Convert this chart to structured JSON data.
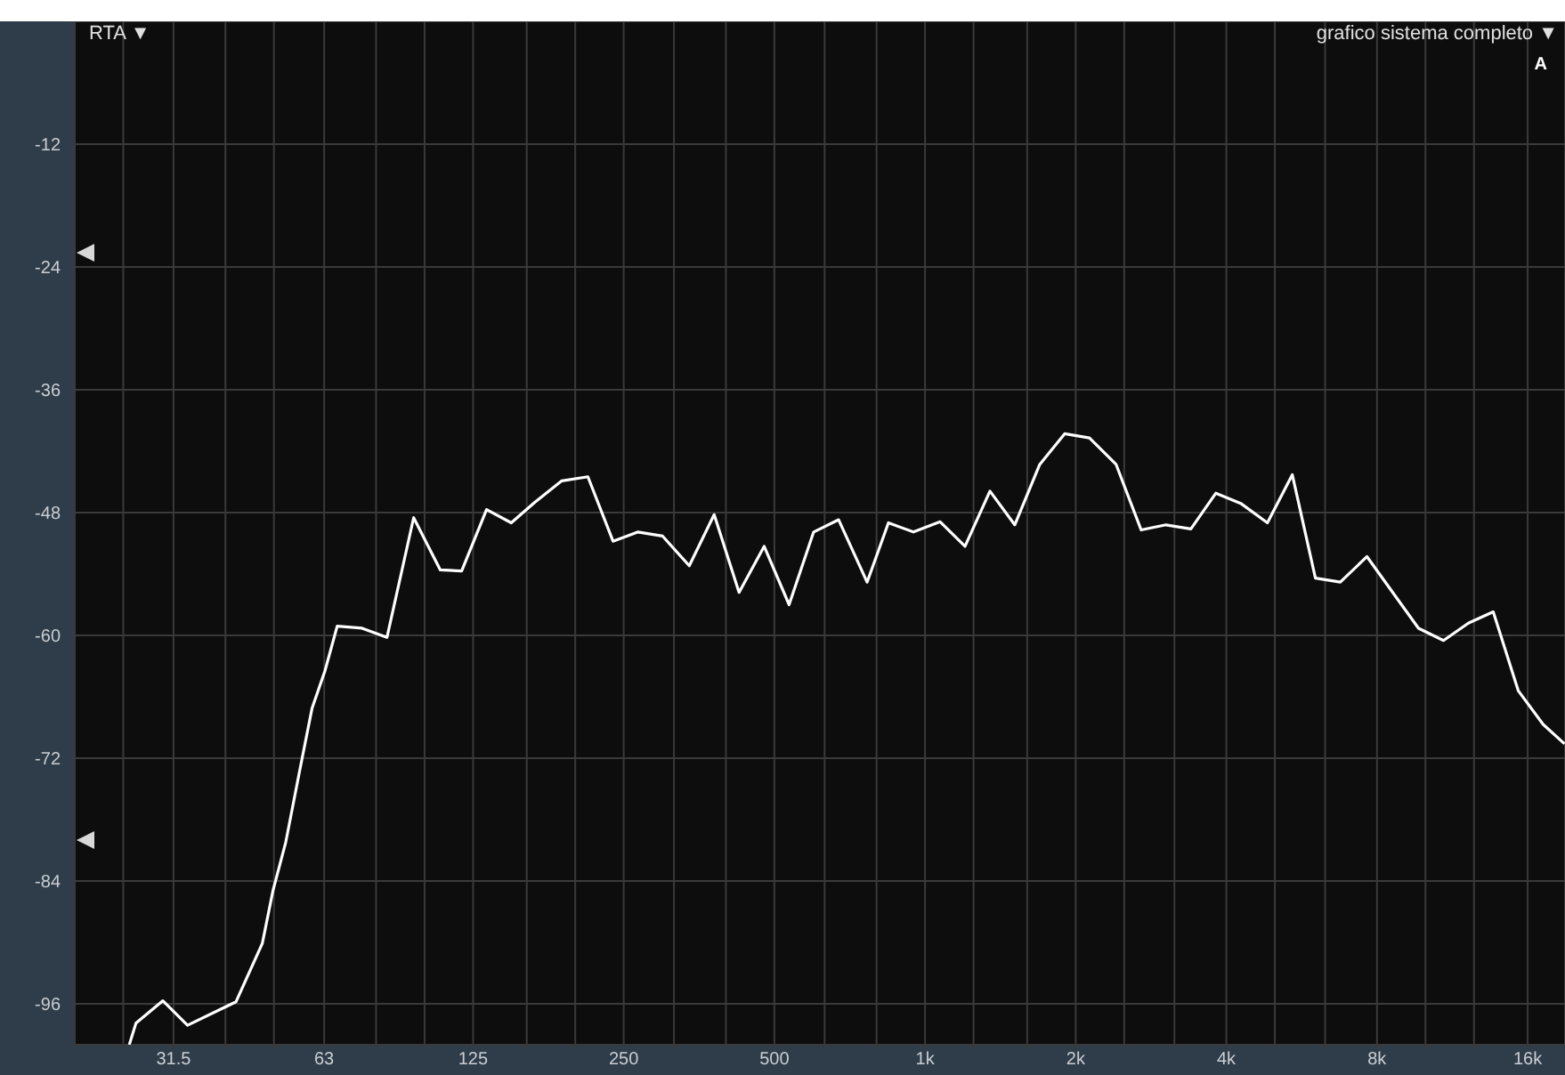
{
  "chart_data": {
    "type": "line",
    "title": "RTA ▼",
    "subtitle": "grafico sistema completo ▼",
    "annotations": [
      "A"
    ],
    "x": [
      25.7,
      26.5,
      30.0,
      33.6,
      42.0,
      47.4,
      49.8,
      52.8,
      56.3,
      59.6,
      63.2,
      66.9,
      75.0,
      84.1,
      95.1,
      107.5,
      118.6,
      133,
      149,
      166,
      188,
      212,
      238,
      267,
      299,
      338,
      379,
      425,
      477,
      535,
      599,
      672,
      766,
      845,
      948,
      1072,
      1202,
      1348,
      1511,
      1695,
      1901,
      2131,
      2409,
      2703,
      3030,
      3398,
      3812,
      4274,
      4832,
      5418,
      6026,
      6757,
      7639,
      9683,
      10864,
      12181,
      13658,
      15322,
      17180,
      18960
    ],
    "series": [
      {
        "color": "#ffffff",
        "values": [
          -100.0,
          -97.9,
          -95.7,
          -98.1,
          -95.8,
          -90.1,
          -84.9,
          -80.2,
          -73.2,
          -67.1,
          -63.5,
          -59.1,
          -59.3,
          -60.2,
          -48.5,
          -53.6,
          -53.7,
          -47.7,
          -49.0,
          -47.0,
          -44.9,
          -44.5,
          -50.8,
          -49.9,
          -50.3,
          -53.2,
          -48.2,
          -55.8,
          -51.3,
          -57.0,
          -49.9,
          -48.7,
          -54.8,
          -49.0,
          -49.9,
          -48.9,
          -51.3,
          -45.9,
          -49.2,
          -43.3,
          -40.3,
          -40.7,
          -43.3,
          -49.7,
          -49.2,
          -49.6,
          -46.1,
          -47.1,
          -49.0,
          -44.3,
          -54.4,
          -54.8,
          -52.3,
          -59.3,
          -60.5,
          -58.8,
          -57.7,
          -65.4,
          -68.7,
          -70.6
        ]
      }
    ],
    "xlim": [
      20,
      19000
    ],
    "ylim": [
      -100,
      0
    ],
    "xticks": [
      {
        "value": 20,
        "label": null
      },
      {
        "value": 25,
        "label": null
      },
      {
        "value": 31.5,
        "label": "31.5"
      },
      {
        "value": 40,
        "label": null
      },
      {
        "value": 50,
        "label": null
      },
      {
        "value": 63,
        "label": "63"
      },
      {
        "value": 80,
        "label": null
      },
      {
        "value": 100,
        "label": null
      },
      {
        "value": 125,
        "label": "125"
      },
      {
        "value": 160,
        "label": null
      },
      {
        "value": 200,
        "label": null
      },
      {
        "value": 250,
        "label": "250"
      },
      {
        "value": 315,
        "label": null
      },
      {
        "value": 400,
        "label": null
      },
      {
        "value": 500,
        "label": "500"
      },
      {
        "value": 630,
        "label": null
      },
      {
        "value": 800,
        "label": null
      },
      {
        "value": 1000,
        "label": "1k"
      },
      {
        "value": 1250,
        "label": null
      },
      {
        "value": 1600,
        "label": null
      },
      {
        "value": 2000,
        "label": "2k"
      },
      {
        "value": 2500,
        "label": null
      },
      {
        "value": 3150,
        "label": null
      },
      {
        "value": 4000,
        "label": "4k"
      },
      {
        "value": 5000,
        "label": null
      },
      {
        "value": 6300,
        "label": null
      },
      {
        "value": 8000,
        "label": "8k"
      },
      {
        "value": 10000,
        "label": null
      },
      {
        "value": 12500,
        "label": null
      },
      {
        "value": 16000,
        "label": "16k"
      }
    ],
    "yticks": [
      -12,
      -24,
      -36,
      -48,
      -60,
      -72,
      -84,
      -96
    ],
    "grid": true,
    "log": "x"
  }
}
